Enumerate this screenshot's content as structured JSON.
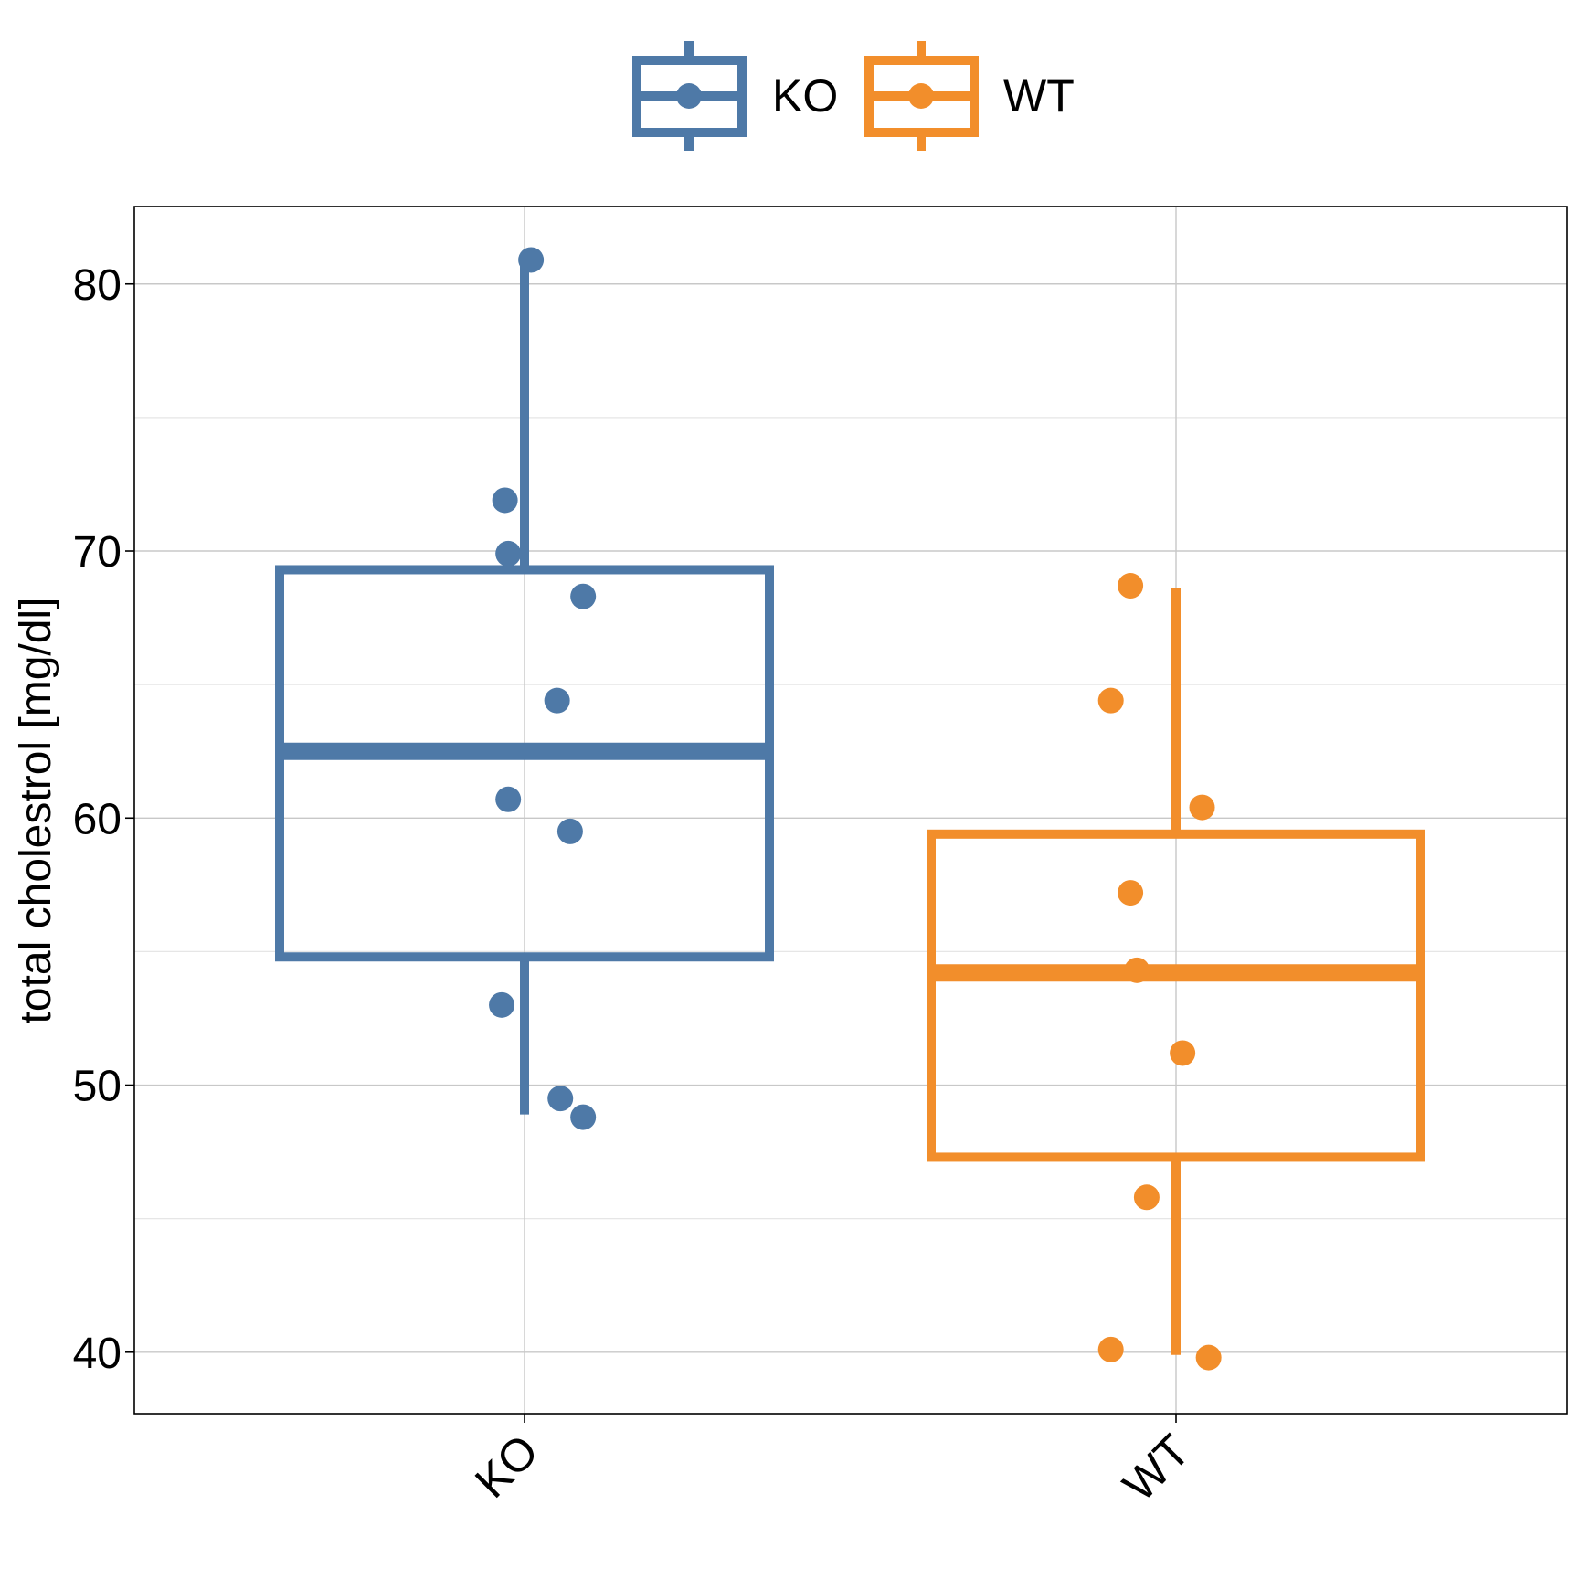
{
  "chart_data": {
    "type": "boxplot",
    "title": "",
    "xlabel": "",
    "ylabel": "total cholestrol [mg/dl]",
    "ylim": [
      37.7,
      82.9
    ],
    "yticks": [
      40,
      50,
      60,
      70,
      80
    ],
    "grid": true,
    "legend_position": "top",
    "categories": [
      "KO",
      "WT"
    ],
    "series": [
      {
        "name": "KO",
        "color": "#4e79a7",
        "box": {
          "whisker_low": 48.9,
          "q1": 54.8,
          "median": 62.5,
          "q3": 69.3,
          "whisker_high": 80.7
        },
        "points": [
          {
            "jitter": 0.01,
            "y": 80.9
          },
          {
            "jitter": -0.03,
            "y": 71.9
          },
          {
            "jitter": -0.025,
            "y": 69.9
          },
          {
            "jitter": 0.09,
            "y": 68.3
          },
          {
            "jitter": 0.05,
            "y": 64.4
          },
          {
            "jitter": -0.025,
            "y": 60.7
          },
          {
            "jitter": 0.07,
            "y": 59.5
          },
          {
            "jitter": -0.035,
            "y": 53.0
          },
          {
            "jitter": 0.055,
            "y": 49.5
          },
          {
            "jitter": 0.09,
            "y": 48.8
          }
        ]
      },
      {
        "name": "WT",
        "color": "#f28e2b",
        "box": {
          "whisker_low": 39.9,
          "q1": 47.3,
          "median": 54.2,
          "q3": 59.4,
          "whisker_high": 68.6
        },
        "points": [
          {
            "jitter": -0.07,
            "y": 68.7
          },
          {
            "jitter": -0.1,
            "y": 64.4
          },
          {
            "jitter": 0.04,
            "y": 60.4
          },
          {
            "jitter": -0.07,
            "y": 57.2
          },
          {
            "jitter": -0.06,
            "y": 54.3
          },
          {
            "jitter": 0.01,
            "y": 51.2
          },
          {
            "jitter": -0.045,
            "y": 45.8
          },
          {
            "jitter": -0.1,
            "y": 40.1
          },
          {
            "jitter": 0.05,
            "y": 39.8
          }
        ]
      }
    ]
  }
}
